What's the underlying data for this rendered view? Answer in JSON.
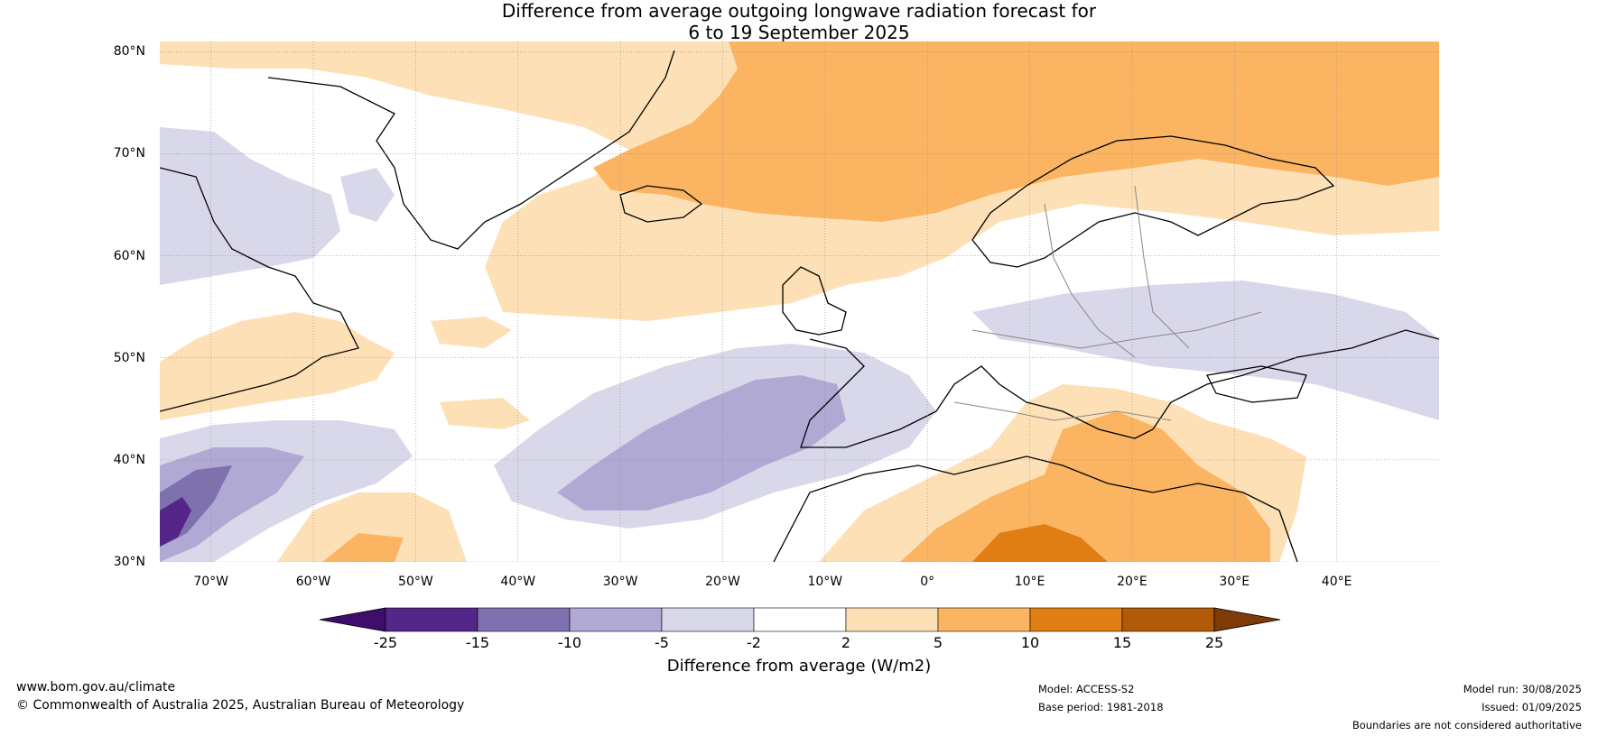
{
  "title": {
    "line1": "Difference from average outgoing longwave radiation forecast for",
    "line2": "6 to 19 September 2025"
  },
  "axes": {
    "lat_ticks": [
      "80°N",
      "70°N",
      "60°N",
      "50°N",
      "40°N",
      "30°N"
    ],
    "lat_values": [
      80,
      70,
      60,
      50,
      40,
      30
    ],
    "lon_ticks": [
      "70°W",
      "60°W",
      "50°W",
      "40°W",
      "30°W",
      "20°W",
      "10°W",
      "0°",
      "10°E",
      "20°E",
      "30°E",
      "40°E"
    ],
    "lon_values": [
      -70,
      -60,
      -50,
      -40,
      -30,
      -20,
      -10,
      0,
      10,
      20,
      30,
      40
    ],
    "lon_range": [
      -75,
      50
    ],
    "lat_range": [
      30,
      81
    ],
    "grid": true
  },
  "colorbar": {
    "label": "Difference from average (W/m2)",
    "ticks": [
      "-25",
      "-15",
      "-10",
      "-5",
      "-2",
      "2",
      "5",
      "10",
      "15",
      "25"
    ],
    "colors": [
      "#3f0d6b",
      "#54268a",
      "#7f71ae",
      "#b0a9d3",
      "#d8d8ea",
      "#ffffff",
      "#fde0b6",
      "#fbb462",
      "#e07d13",
      "#b15a07",
      "#7e3b08"
    ],
    "extend": "both"
  },
  "footer": {
    "url": "www.bom.gov.au/climate",
    "copyright": "© Commonwealth of Australia 2025, Australian Bureau of Meteorology",
    "model": "Model: ACCESS-S2",
    "base_period": "Base period: 1981-2018",
    "model_run": "Model run: 30/08/2025",
    "issued": "Issued: 01/09/2025",
    "disclaimer": "Boundaries are not considered authoritative"
  }
}
